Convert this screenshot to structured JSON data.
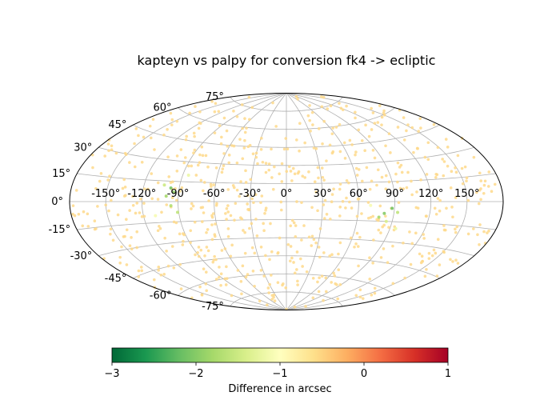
{
  "chart_data": {
    "type": "scatter",
    "projection": "aitoff",
    "title": "kapteyn vs palpy for conversion fk4 -> ecliptic",
    "grid": true,
    "lon_ticks": [
      "-150°",
      "-120°",
      "-90°",
      "-60°",
      "-30°",
      "0°",
      "30°",
      "60°",
      "90°",
      "120°",
      "150°"
    ],
    "lat_ticks": [
      "-75°",
      "-60°",
      "-45°",
      "-30°",
      "-15°",
      "0°",
      "15°",
      "30°",
      "45°",
      "60°",
      "75°"
    ],
    "lon_tick_values": [
      -150,
      -120,
      -90,
      -60,
      -30,
      0,
      30,
      60,
      90,
      120,
      150
    ],
    "lat_tick_values": [
      -75,
      -60,
      -45,
      -30,
      -15,
      0,
      15,
      30,
      45,
      60,
      75
    ],
    "series": [
      {
        "values": [
          {
            "lon": -97,
            "lat": 10,
            "diff": -2.1
          },
          {
            "lon": -94,
            "lat": 7,
            "diff": -1.9
          },
          {
            "lon": -100,
            "lat": 4,
            "diff": -1.8
          },
          {
            "lon": -96,
            "lat": -3,
            "diff": -1.7
          },
          {
            "lon": -91,
            "lat": -8,
            "diff": -1.6
          },
          {
            "lon": -103,
            "lat": 12,
            "diff": -1.5
          },
          {
            "lon": 88,
            "lat": -5,
            "diff": -2.1
          },
          {
            "lon": 82,
            "lat": -9,
            "diff": -2.0
          },
          {
            "lon": 78,
            "lat": -12,
            "diff": -1.8
          },
          {
            "lon": 93,
            "lat": -8,
            "diff": -1.6
          },
          {
            "lon": 85,
            "lat": -15,
            "diff": -1.4
          },
          {
            "lon": -85,
            "lat": 20,
            "diff": -1.2
          },
          {
            "lon": 95,
            "lat": -20,
            "diff": -1.2
          },
          {
            "lon": -110,
            "lat": -10,
            "diff": -1.1
          },
          {
            "lon": 70,
            "lat": -3,
            "diff": -1.1
          }
        ]
      }
    ],
    "colorbar": {
      "min": -3,
      "max": 1,
      "ticks": [
        "−3",
        "−2",
        "−1",
        "0",
        "1"
      ],
      "tick_values": [
        -3,
        -2,
        -1,
        0,
        1
      ],
      "label": "Difference in arcsec",
      "colormap": "RdYlGn_r",
      "colors": [
        "#006837",
        "#1a9850",
        "#66bd63",
        "#a6d96a",
        "#d9ef8b",
        "#ffffbf",
        "#fee08b",
        "#fdae61",
        "#f46d43",
        "#d73027",
        "#a50026"
      ]
    },
    "background_point_color": "#fed98b",
    "background_point_count": 700
  }
}
